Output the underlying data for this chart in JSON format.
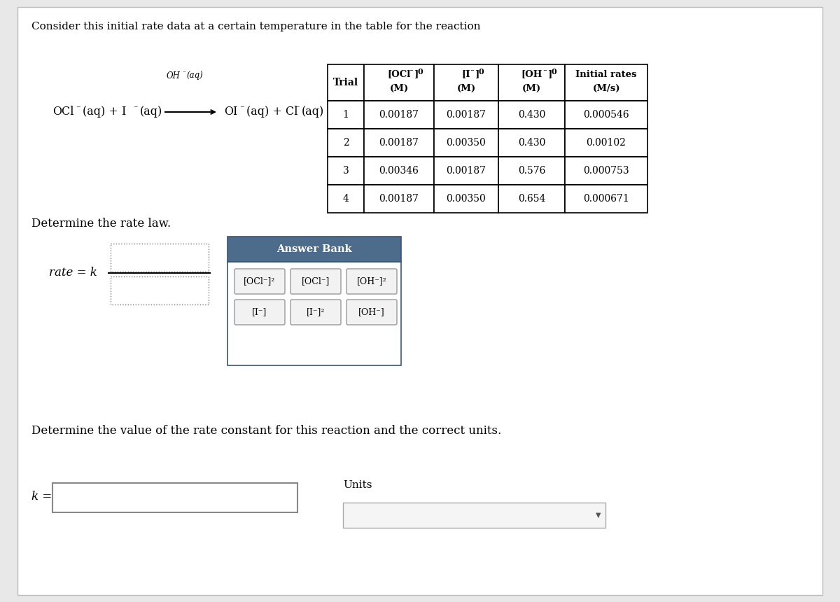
{
  "bg_color": "#e8e8e8",
  "card_color": "#ffffff",
  "title": "Consider this initial rate data at a certain temperature in the table for the reaction",
  "table_data": [
    [
      "1",
      "0.00187",
      "0.00187",
      "0.430",
      "0.000546"
    ],
    [
      "2",
      "0.00187",
      "0.00350",
      "0.430",
      "0.00102"
    ],
    [
      "3",
      "0.00346",
      "0.00187",
      "0.576",
      "0.000753"
    ],
    [
      "4",
      "0.00187",
      "0.00350",
      "0.654",
      "0.000671"
    ]
  ],
  "determine_rate_law_text": "Determine the rate law.",
  "answer_bank_title": "Answer Bank",
  "answer_bank_header_color": "#4d6b8a",
  "determine_k_text": "Determine the value of the rate constant for this reaction and the correct units.",
  "k_label": "k =",
  "units_label": "Units"
}
